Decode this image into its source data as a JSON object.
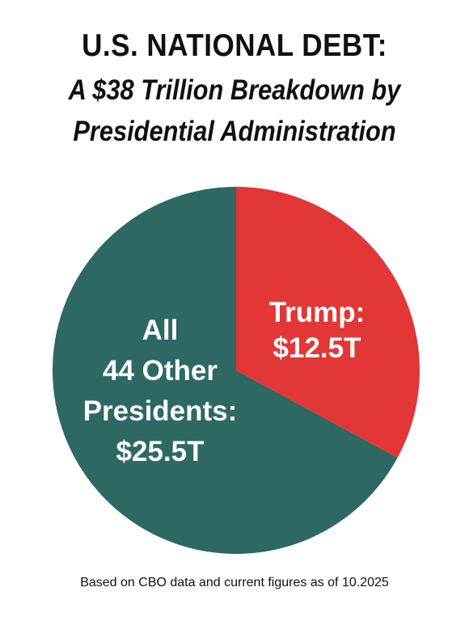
{
  "header": {
    "title": "U.S. NATIONAL DEBT:",
    "subtitle_line1": "A $38 Trillion Breakdown by",
    "subtitle_line2": "Presidential Administration"
  },
  "footnote": "Based on CBO data and current figures as of 10.2025",
  "colors": {
    "trump": "#e33636",
    "others": "#2e6862"
  },
  "chart_data": {
    "type": "pie",
    "title": "U.S. NATIONAL DEBT: A $38 Trillion Breakdown by Presidential Administration",
    "total": 38,
    "unit": "Trillion",
    "slices": [
      {
        "name": "Trump",
        "value": 12.5,
        "label_lines": [
          "Trump:",
          "$12.5T"
        ],
        "color": "#e33636"
      },
      {
        "name": "All 44 Other Presidents",
        "value": 25.5,
        "label_lines": [
          "All",
          "44 Other",
          "Presidents:",
          "$25.5T"
        ],
        "color": "#2e6862"
      }
    ],
    "start_angle": "12 o'clock",
    "direction": "clockwise",
    "legend": "none (labels inside slices)"
  }
}
